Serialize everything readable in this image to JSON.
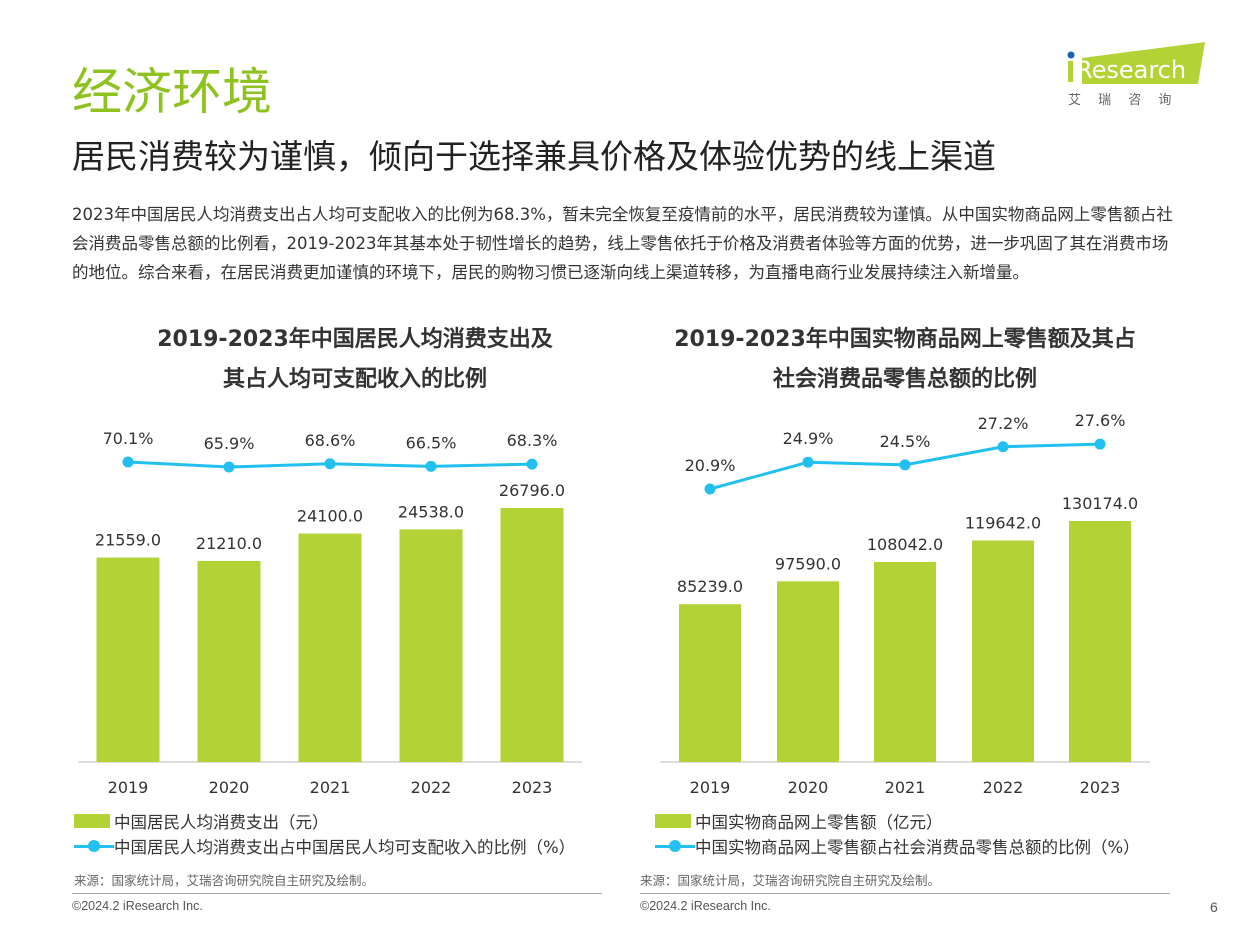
{
  "header": {
    "title": "经济环境",
    "subtitle": "居民消费较为谨慎，倾向于选择兼具价格及体验优势的线上渠道",
    "logo_text": "iResearch",
    "logo_cn": "艾 瑞 咨 询"
  },
  "intro": "2023年中国居民人均消费支出占人均可支配收入的比例为68.3%，暂未完全恢复至疫情前的水平，居民消费较为谨慎。从中国实物商品网上零售额占社会消费品零售总额的比例看，2019-2023年其基本处于韧性增长的趋势，线上零售依托于价格及消费者体验等方面的优势，进一步巩固了其在消费市场的地位。综合来看，在居民消费更加谨慎的环境下，居民的购物习惯已逐渐向线上渠道转移，为直播电商行业发展持续注入新增量。",
  "colors": {
    "accent": "#8dc21f",
    "bar": "#b2d235",
    "line": "#22c0ee"
  },
  "chart_data": [
    {
      "type": "bar+line",
      "title_line1": "2019-2023年中国居民人均消费支出及",
      "title_line2": "其占人均可支配收入的比例",
      "categories": [
        "2019",
        "2020",
        "2021",
        "2022",
        "2023"
      ],
      "series": [
        {
          "name": "中国居民人均消费支出（元）",
          "type": "bar",
          "values": [
            21559.0,
            21210.0,
            24100.0,
            24538.0,
            26796.0
          ],
          "labels": [
            "21559.0",
            "21210.0",
            "24100.0",
            "24538.0",
            "26796.0"
          ]
        },
        {
          "name": "中国居民人均消费支出占中国居民人均可支配收入的比例（%）",
          "type": "line",
          "values": [
            70.1,
            65.9,
            68.6,
            66.5,
            68.3
          ],
          "labels": [
            "70.1%",
            "65.9%",
            "68.6%",
            "66.5%",
            "68.3%"
          ]
        }
      ],
      "source": "来源：国家统计局，艾瑞咨询研究院自主研究及绘制。",
      "copyright": "©2024.2 iResearch Inc."
    },
    {
      "type": "bar+line",
      "title_line1": "2019-2023年中国实物商品网上零售额及其占",
      "title_line2": "社会消费品零售总额的比例",
      "categories": [
        "2019",
        "2020",
        "2021",
        "2022",
        "2023"
      ],
      "series": [
        {
          "name": "中国实物商品网上零售额（亿元）",
          "type": "bar",
          "values": [
            85239.0,
            97590.0,
            108042.0,
            119642.0,
            130174.0
          ],
          "labels": [
            "85239.0",
            "97590.0",
            "108042.0",
            "119642.0",
            "130174.0"
          ]
        },
        {
          "name": "中国实物商品网上零售额占社会消费品零售总额的比例（%）",
          "type": "line",
          "values": [
            20.9,
            24.9,
            24.5,
            27.2,
            27.6
          ],
          "labels": [
            "20.9%",
            "24.9%",
            "24.5%",
            "27.2%",
            "27.6%"
          ]
        }
      ],
      "source": "来源：国家统计局，艾瑞咨询研究院自主研究及绘制。",
      "copyright": "©2024.2 iResearch Inc."
    }
  ],
  "page_number": "6"
}
